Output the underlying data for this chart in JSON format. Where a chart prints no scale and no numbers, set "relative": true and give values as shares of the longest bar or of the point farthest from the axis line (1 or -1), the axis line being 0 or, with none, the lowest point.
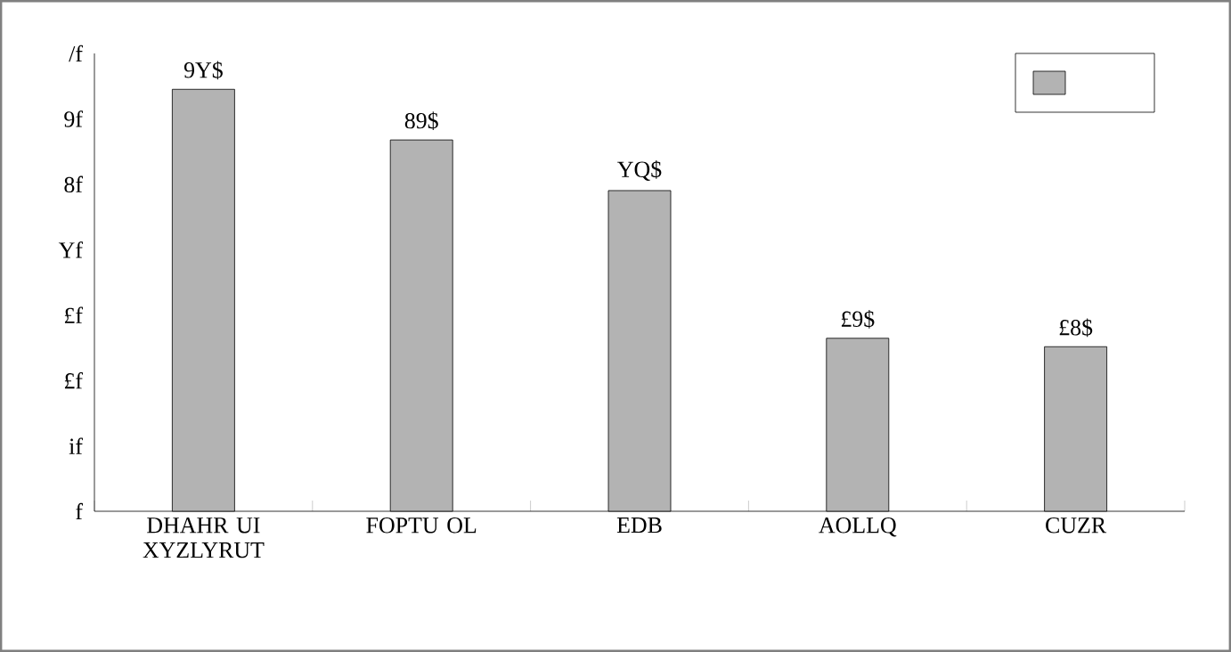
{
  "chart_data": {
    "type": "bar",
    "relative": true,
    "color": "#b3b3b3",
    "categories": [
      "DHAHR UI XYZLYRUT",
      "FOPTU OL",
      "EDB",
      "AOLLQ",
      "CUZR"
    ],
    "values": [
      1,
      0.88,
      0.76,
      0.41,
      0.39
    ],
    "annotations": [
      {
        "text": "9Y$",
        "x": "DHAHR UI XYZLYRUT",
        "y": 1
      },
      {
        "text": "89$",
        "x": "FOPTU OL",
        "y": 0.88
      },
      {
        "text": "YQ$",
        "x": "EDB",
        "y": 0.76
      },
      {
        "text": "£9$",
        "x": "AOLLQ",
        "y": 0.41
      },
      {
        "text": "£8$",
        "x": "CUZR",
        "y": 0.39
      },
      "f",
      "if",
      "£f",
      "£f",
      "Yf",
      "8f",
      "9f",
      "/f"
    ]
  }
}
